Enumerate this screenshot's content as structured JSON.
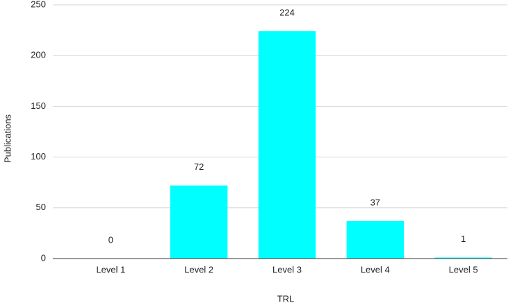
{
  "chart_data": {
    "type": "bar",
    "x_label": "TRL",
    "y_label": "Publications",
    "categories": [
      "Level 1",
      "Level 2",
      "Level 3",
      "Level 4",
      "Level 5"
    ],
    "values": [
      0,
      72,
      224,
      37,
      1
    ],
    "color": "#00ffff",
    "ylim": [
      0,
      250
    ],
    "yticks": [
      0,
      50,
      100,
      150,
      200,
      250
    ],
    "grid": true,
    "data_labels": true
  }
}
